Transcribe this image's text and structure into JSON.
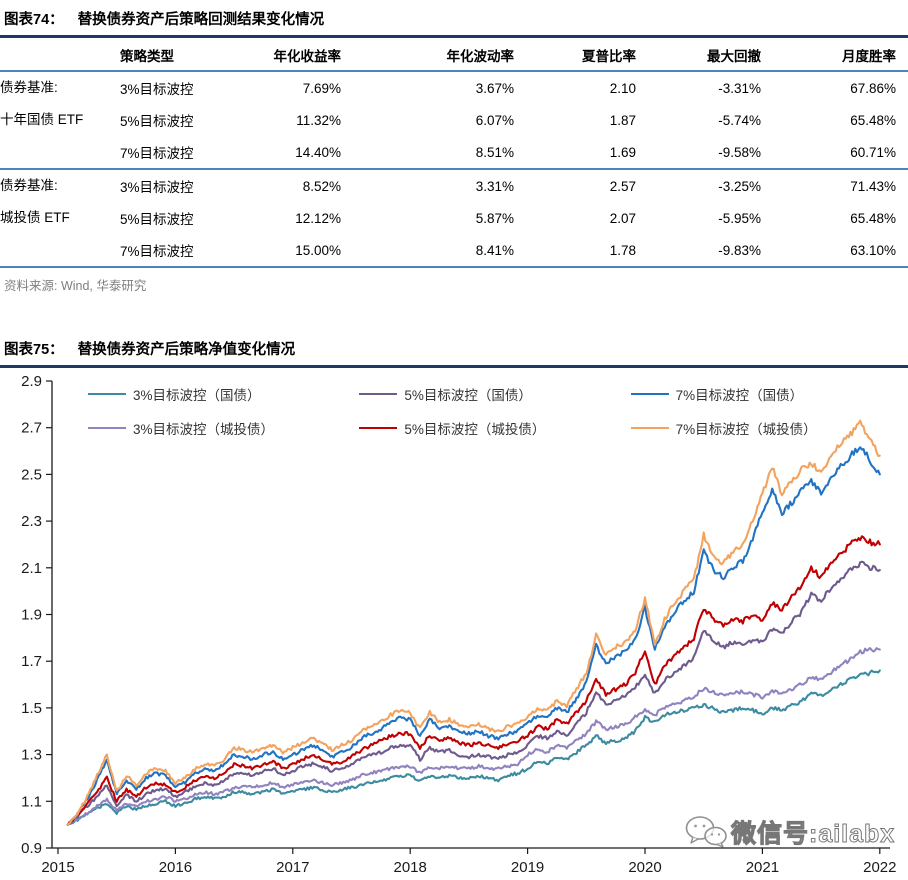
{
  "figure74": {
    "label": "图表74：",
    "title": "替换债券资产后策略回测结果变化情况",
    "source": "资料来源: Wind, 华泰研究",
    "table": {
      "columns": [
        "",
        "策略类型",
        "年化收益率",
        "年化波动率",
        "夏普比率",
        "最大回撤",
        "月度胜率"
      ],
      "groups": [
        {
          "benchmark": [
            "债券基准:",
            "十年国债 ETF"
          ],
          "rows": [
            [
              "3%目标波控",
              "7.69%",
              "3.67%",
              "2.10",
              "-3.31%",
              "67.86%"
            ],
            [
              "5%目标波控",
              "11.32%",
              "6.07%",
              "1.87",
              "-5.74%",
              "65.48%"
            ],
            [
              "7%目标波控",
              "14.40%",
              "8.51%",
              "1.69",
              "-9.58%",
              "60.71%"
            ]
          ]
        },
        {
          "benchmark": [
            "债券基准:",
            "城投债 ETF"
          ],
          "rows": [
            [
              "3%目标波控",
              "8.52%",
              "3.31%",
              "2.57",
              "-3.25%",
              "71.43%"
            ],
            [
              "5%目标波控",
              "12.12%",
              "5.87%",
              "2.07",
              "-5.95%",
              "65.48%"
            ],
            [
              "7%目标波控",
              "15.00%",
              "8.41%",
              "1.78",
              "-9.83%",
              "63.10%"
            ]
          ]
        }
      ]
    }
  },
  "figure75": {
    "label": "图表75：",
    "title": "替换债券资产后策略净值变化情况"
  },
  "watermark": {
    "icon": "wechat-icon",
    "text": "微信号:ailabx"
  },
  "chart_data": {
    "type": "line",
    "title": "替换债券资产后策略净值变化情况",
    "xlabel": "",
    "ylabel": "",
    "ylim": [
      0.9,
      2.9
    ],
    "yticks": [
      0.9,
      1.1,
      1.3,
      1.5,
      1.7,
      1.9,
      2.1,
      2.3,
      2.5,
      2.7,
      2.9
    ],
    "xticks": [
      2015,
      2016,
      2017,
      2018,
      2019,
      2020,
      2021,
      2022
    ],
    "grid": false,
    "legend_position": "top-inside",
    "x_months": [
      "2015-02",
      "2015-03",
      "2015-04",
      "2015-05",
      "2015-06",
      "2015-07",
      "2015-08",
      "2015-09",
      "2015-10",
      "2015-11",
      "2015-12",
      "2016-01",
      "2016-02",
      "2016-03",
      "2016-04",
      "2016-05",
      "2016-06",
      "2016-07",
      "2016-08",
      "2016-09",
      "2016-10",
      "2016-11",
      "2016-12",
      "2017-01",
      "2017-02",
      "2017-03",
      "2017-04",
      "2017-05",
      "2017-06",
      "2017-07",
      "2017-08",
      "2017-09",
      "2017-10",
      "2017-11",
      "2017-12",
      "2018-01",
      "2018-02",
      "2018-03",
      "2018-04",
      "2018-05",
      "2018-06",
      "2018-07",
      "2018-08",
      "2018-09",
      "2018-10",
      "2018-11",
      "2018-12",
      "2019-01",
      "2019-02",
      "2019-03",
      "2019-04",
      "2019-05",
      "2019-06",
      "2019-07",
      "2019-08",
      "2019-09",
      "2019-10",
      "2019-11",
      "2019-12",
      "2020-01",
      "2020-02",
      "2020-03",
      "2020-04",
      "2020-05",
      "2020-06",
      "2020-07",
      "2020-08",
      "2020-09",
      "2020-10",
      "2020-11",
      "2020-12",
      "2021-01",
      "2021-02",
      "2021-03",
      "2021-04",
      "2021-05",
      "2021-06",
      "2021-07",
      "2021-08",
      "2021-09",
      "2021-10",
      "2021-11",
      "2021-12",
      "2022-01"
    ],
    "series": [
      {
        "name": "3%目标波控（国债）",
        "color": "#3d8ba1",
        "values": [
          1.0,
          1.02,
          1.045,
          1.07,
          1.09,
          1.05,
          1.08,
          1.065,
          1.08,
          1.09,
          1.1,
          1.08,
          1.09,
          1.11,
          1.12,
          1.11,
          1.12,
          1.14,
          1.14,
          1.13,
          1.14,
          1.15,
          1.13,
          1.14,
          1.15,
          1.16,
          1.15,
          1.14,
          1.15,
          1.16,
          1.17,
          1.18,
          1.19,
          1.2,
          1.21,
          1.21,
          1.19,
          1.21,
          1.2,
          1.21,
          1.2,
          1.2,
          1.21,
          1.2,
          1.19,
          1.21,
          1.22,
          1.24,
          1.27,
          1.26,
          1.29,
          1.28,
          1.31,
          1.34,
          1.38,
          1.35,
          1.36,
          1.37,
          1.4,
          1.46,
          1.44,
          1.47,
          1.48,
          1.49,
          1.5,
          1.51,
          1.5,
          1.48,
          1.49,
          1.5,
          1.49,
          1.47,
          1.5,
          1.49,
          1.51,
          1.53,
          1.56,
          1.55,
          1.58,
          1.6,
          1.62,
          1.64,
          1.65,
          1.66
        ]
      },
      {
        "name": "5%目标波控（国债）",
        "color": "#6e5a8c",
        "values": [
          1.0,
          1.035,
          1.08,
          1.12,
          1.17,
          1.08,
          1.13,
          1.1,
          1.13,
          1.15,
          1.15,
          1.12,
          1.14,
          1.16,
          1.18,
          1.17,
          1.19,
          1.22,
          1.22,
          1.21,
          1.23,
          1.24,
          1.21,
          1.23,
          1.25,
          1.26,
          1.25,
          1.23,
          1.24,
          1.26,
          1.28,
          1.3,
          1.31,
          1.33,
          1.34,
          1.34,
          1.28,
          1.33,
          1.31,
          1.32,
          1.3,
          1.29,
          1.3,
          1.29,
          1.28,
          1.3,
          1.31,
          1.34,
          1.38,
          1.37,
          1.4,
          1.38,
          1.43,
          1.48,
          1.57,
          1.51,
          1.53,
          1.55,
          1.59,
          1.64,
          1.56,
          1.62,
          1.65,
          1.68,
          1.72,
          1.83,
          1.79,
          1.76,
          1.78,
          1.77,
          1.79,
          1.78,
          1.84,
          1.82,
          1.87,
          1.91,
          1.99,
          1.96,
          2.01,
          2.05,
          2.09,
          2.12,
          2.1,
          2.09
        ]
      },
      {
        "name": "7%目标波控（国债）",
        "color": "#2273c3",
        "values": [
          1.0,
          1.045,
          1.11,
          1.19,
          1.28,
          1.13,
          1.19,
          1.15,
          1.2,
          1.22,
          1.21,
          1.16,
          1.18,
          1.22,
          1.24,
          1.23,
          1.26,
          1.3,
          1.29,
          1.28,
          1.3,
          1.31,
          1.28,
          1.3,
          1.32,
          1.34,
          1.32,
          1.29,
          1.31,
          1.33,
          1.37,
          1.39,
          1.41,
          1.44,
          1.46,
          1.45,
          1.38,
          1.45,
          1.41,
          1.42,
          1.4,
          1.39,
          1.4,
          1.38,
          1.37,
          1.39,
          1.4,
          1.43,
          1.47,
          1.46,
          1.5,
          1.48,
          1.54,
          1.61,
          1.77,
          1.69,
          1.72,
          1.74,
          1.79,
          1.93,
          1.75,
          1.85,
          1.91,
          1.96,
          2.0,
          2.17,
          2.09,
          2.06,
          2.1,
          2.13,
          2.22,
          2.34,
          2.44,
          2.33,
          2.38,
          2.43,
          2.47,
          2.42,
          2.49,
          2.54,
          2.58,
          2.62,
          2.56,
          2.5
        ]
      },
      {
        "name": "3%目标波控（城投债）",
        "color": "#9183bf",
        "values": [
          1.0,
          1.025,
          1.05,
          1.08,
          1.11,
          1.06,
          1.09,
          1.08,
          1.1,
          1.11,
          1.12,
          1.1,
          1.11,
          1.13,
          1.14,
          1.13,
          1.14,
          1.16,
          1.16,
          1.16,
          1.17,
          1.18,
          1.16,
          1.17,
          1.18,
          1.19,
          1.18,
          1.17,
          1.18,
          1.19,
          1.21,
          1.22,
          1.23,
          1.24,
          1.25,
          1.25,
          1.22,
          1.25,
          1.24,
          1.25,
          1.24,
          1.24,
          1.25,
          1.24,
          1.24,
          1.25,
          1.26,
          1.3,
          1.32,
          1.31,
          1.34,
          1.33,
          1.36,
          1.39,
          1.44,
          1.41,
          1.42,
          1.43,
          1.46,
          1.49,
          1.47,
          1.5,
          1.52,
          1.53,
          1.55,
          1.58,
          1.57,
          1.55,
          1.56,
          1.57,
          1.56,
          1.54,
          1.57,
          1.56,
          1.58,
          1.6,
          1.63,
          1.62,
          1.65,
          1.68,
          1.71,
          1.74,
          1.75,
          1.75
        ]
      },
      {
        "name": "5%目标波控（城投债）",
        "color": "#c00000",
        "values": [
          1.0,
          1.04,
          1.09,
          1.14,
          1.2,
          1.1,
          1.15,
          1.12,
          1.16,
          1.18,
          1.17,
          1.14,
          1.16,
          1.19,
          1.21,
          1.2,
          1.22,
          1.26,
          1.25,
          1.24,
          1.26,
          1.27,
          1.24,
          1.26,
          1.28,
          1.3,
          1.28,
          1.26,
          1.27,
          1.29,
          1.32,
          1.34,
          1.36,
          1.38,
          1.39,
          1.39,
          1.33,
          1.38,
          1.36,
          1.37,
          1.35,
          1.34,
          1.35,
          1.34,
          1.33,
          1.35,
          1.36,
          1.38,
          1.42,
          1.41,
          1.45,
          1.43,
          1.48,
          1.53,
          1.62,
          1.56,
          1.58,
          1.6,
          1.65,
          1.75,
          1.6,
          1.68,
          1.72,
          1.76,
          1.8,
          1.93,
          1.88,
          1.85,
          1.88,
          1.87,
          1.9,
          1.88,
          1.95,
          1.92,
          1.98,
          2.02,
          2.1,
          2.06,
          2.12,
          2.16,
          2.2,
          2.23,
          2.21,
          2.2
        ]
      },
      {
        "name": "7%目标波控（城投债）",
        "color": "#f3a35e",
        "values": [
          1.0,
          1.05,
          1.12,
          1.21,
          1.3,
          1.14,
          1.21,
          1.17,
          1.22,
          1.24,
          1.23,
          1.18,
          1.2,
          1.24,
          1.26,
          1.25,
          1.28,
          1.33,
          1.32,
          1.31,
          1.33,
          1.34,
          1.31,
          1.33,
          1.35,
          1.37,
          1.35,
          1.32,
          1.34,
          1.36,
          1.4,
          1.42,
          1.44,
          1.47,
          1.49,
          1.48,
          1.41,
          1.48,
          1.44,
          1.45,
          1.43,
          1.42,
          1.43,
          1.41,
          1.4,
          1.42,
          1.43,
          1.46,
          1.5,
          1.49,
          1.53,
          1.51,
          1.58,
          1.65,
          1.81,
          1.73,
          1.76,
          1.78,
          1.83,
          1.97,
          1.77,
          1.88,
          1.95,
          2.0,
          2.05,
          2.24,
          2.15,
          2.12,
          2.17,
          2.2,
          2.3,
          2.42,
          2.53,
          2.41,
          2.47,
          2.52,
          2.55,
          2.5,
          2.58,
          2.63,
          2.67,
          2.72,
          2.65,
          2.58
        ]
      }
    ]
  }
}
